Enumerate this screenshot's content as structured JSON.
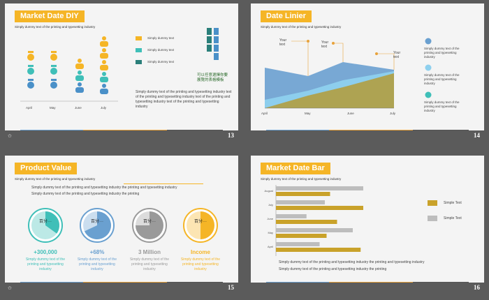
{
  "slides": [
    {
      "number": "13",
      "title": "Market Date DIY",
      "subtitle": "Simply dummy text of the printing and typesetting  industry",
      "months": [
        "April",
        "May",
        "June",
        "July"
      ],
      "legend": [
        {
          "label": "Simply dummy text",
          "color": "#f5b526"
        },
        {
          "label": "Simply dummy text",
          "color": "#3fbfb8"
        },
        {
          "label": "Simply dummy text",
          "color": "#2a7f7a"
        }
      ],
      "chinese_note": "可以任意選擇你要\n展覽的表格模板",
      "paragraph": "Simply dummy text of the printing and typesetting industry text of the printing and typesetting industry text of the printing and typesetting industry  text of the printing and typesetting industry"
    },
    {
      "number": "14",
      "title": "Date Linier",
      "subtitle": "Simply dummy text of the printing and typesetting  industry",
      "callouts": [
        "Your\ntext",
        "Your\ntext",
        "Your\ntext"
      ],
      "months": [
        "April",
        "May",
        "June",
        "July"
      ],
      "legend": [
        {
          "label": "Simply dummy text of the printing and typesetting industry",
          "color": "#6aa0d0"
        },
        {
          "label": "Simply dummy text of the printing and typesetting industry",
          "color": "#8ed0ee"
        },
        {
          "label": "Simply dummy text of the printing and typesetting industry",
          "color": "#3fbfb8"
        }
      ]
    },
    {
      "number": "15",
      "title": "Product Value",
      "subtitle": "Simply dummy text of the printing and typesetting  industry",
      "intro_line1": "Simply dummy text of the printing and typesetting industry the printing and typesetting industry",
      "intro_line2": "Simply dummy text of the printing and typesetting industry the printing",
      "circles": [
        {
          "label": "百分···",
          "value": "+300,000",
          "text": "Simply dummy  text of the printing and typesetting industry",
          "color": "#3fbfb8",
          "fraction": 0.35
        },
        {
          "label": "百分···",
          "value": "+68%",
          "text": "Simply dummy  text of the printing and typesetting industry",
          "color": "#6aa0d0",
          "fraction": 0.68
        },
        {
          "label": "百分···",
          "value": "3 Million",
          "text": "Simply dummy  text of the printing and typesetting industry",
          "color": "#9a9a9a",
          "fraction": 0.75
        },
        {
          "label": "百分···",
          "value": "Income",
          "text": "Simply dummy  text of the printing and typesetting industry",
          "color": "#f5b526",
          "fraction": 0.5
        }
      ]
    },
    {
      "number": "16",
      "title": "Market Date Bar",
      "subtitle": "Simply dummy text of the printing and typesetting  industry",
      "legend": [
        {
          "label": "Simple Text",
          "color": "#c9a22a"
        },
        {
          "label": "Simple Text",
          "color": "#bdbdbd"
        }
      ],
      "para_line1": "Simply dummy text of the printing and typesetting industry the printing and typesetting industry",
      "para_line2": "Simply dummy text of the printing and typesetting industry the printing"
    }
  ],
  "chart_data": {
    "type": "bar",
    "categories": [
      "August",
      "July",
      "June",
      "May",
      "April"
    ],
    "series": [
      {
        "values": [
          62,
          100,
          70,
          58,
          97
        ]
      },
      {
        "values": [
          100,
          56,
          35,
          88,
          50
        ]
      }
    ],
    "colors": [
      "#c9a22a",
      "#bdbdbd"
    ]
  }
}
